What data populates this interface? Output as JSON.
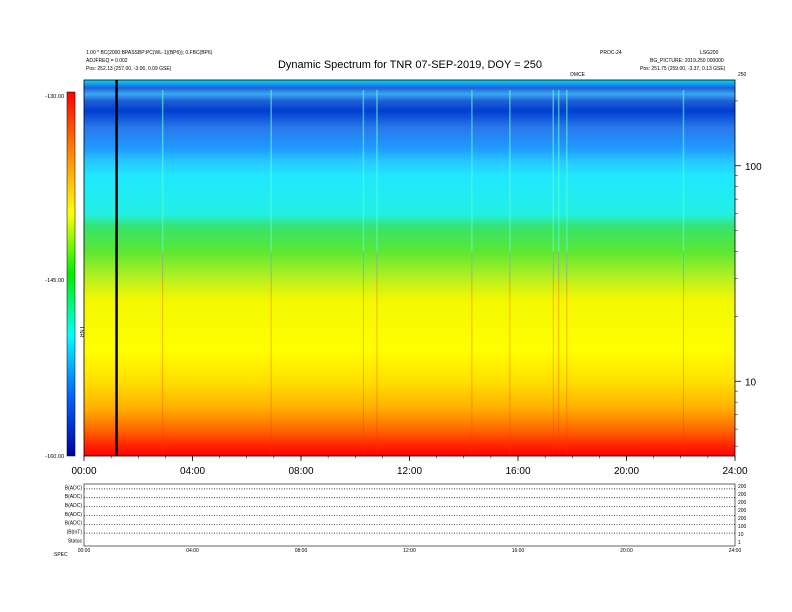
{
  "header": {
    "left_line1": "1.00 * BC(2000:BPASSBP:PC(WL-1)(BP6)); 0.FBC(BP6)",
    "left_line2": "ADJFREQ = 0.002",
    "left_line3": "Pos:  252.13 (257.00, -3.06, 0.09 GSE)",
    "right_line0": "PROC-24",
    "right_line1": "LSG200",
    "right_line2": "BG_PICTURE: 2019.250 000000",
    "right_line3": "Pos:  251.75 (259.00, -3.37, 0.13 GSE)"
  },
  "chart_data": {
    "type": "heatmap",
    "title": "Dynamic Spectrum for TNR 07-SEP-2019, DOY = 250",
    "x": {
      "unit": "hours",
      "range": [
        0,
        24
      ],
      "tick_labels": [
        "00:00",
        "04:00",
        "08:00",
        "12:00",
        "16:00",
        "20:00",
        "24:00"
      ]
    },
    "y": {
      "scale": "log",
      "unit": "kHz",
      "range": [
        4.5,
        250
      ],
      "tick_labels": [
        "10",
        "100"
      ],
      "top_label": "250"
    },
    "colorbar": {
      "label": "TNR",
      "range": [
        -160,
        -130
      ],
      "tick_labels": [
        "-130.00",
        "-145.00",
        "-160.00"
      ],
      "colors": [
        "#0000aa",
        "#0066ff",
        "#00ffff",
        "#00ee00",
        "#ffff00",
        "#ff8800",
        "#ff0000"
      ]
    },
    "annotations": [
      {
        "text": "DMCE",
        "x": 18.2
      }
    ],
    "marker_line_x_hours": 1.2,
    "band_profile": [
      {
        "f_khz": 250,
        "color": "#00ddff"
      },
      {
        "f_khz": 230,
        "color": "#1f5fd9"
      },
      {
        "f_khz": 215,
        "color": "#3aa8f0"
      },
      {
        "f_khz": 200,
        "color": "#1f5fd9"
      },
      {
        "f_khz": 180,
        "color": "#003fcf"
      },
      {
        "f_khz": 150,
        "color": "#2a78ec"
      },
      {
        "f_khz": 120,
        "color": "#1f9cff"
      },
      {
        "f_khz": 105,
        "color": "#27c7ff"
      },
      {
        "f_khz": 90,
        "color": "#1fe8ff"
      },
      {
        "f_khz": 60,
        "color": "#22f0e6"
      },
      {
        "f_khz": 52,
        "color": "#36e36b"
      },
      {
        "f_khz": 40,
        "color": "#5be832"
      },
      {
        "f_khz": 30,
        "color": "#b8f020"
      },
      {
        "f_khz": 24,
        "color": "#f2f800"
      },
      {
        "f_khz": 14,
        "color": "#ffff00"
      },
      {
        "f_khz": 10,
        "color": "#ffe000"
      },
      {
        "f_khz": 7.5,
        "color": "#ffb000"
      },
      {
        "f_khz": 6,
        "color": "#ff6a00"
      },
      {
        "f_khz": 5,
        "color": "#ff2200"
      },
      {
        "f_khz": 4.5,
        "color": "#ff0000"
      }
    ],
    "bursts_hours": [
      2.9,
      6.9,
      10.3,
      10.8,
      14.3,
      15.7,
      17.3,
      17.5,
      17.8,
      22.1
    ]
  },
  "lower_panel": {
    "row_labels": [
      "B(ADC)",
      "B(ADC)",
      "B(ADC)",
      "B(ADC)",
      "B(ADC)",
      "|B|(nT)",
      "Status",
      "SPEC"
    ],
    "right_ticks": [
      "200",
      "200",
      "200",
      "200",
      "200",
      "100",
      "10",
      "1"
    ],
    "time_labels": [
      "00:00",
      "04:00",
      "08:00",
      "12:00",
      "16:00",
      "20:00",
      "24:00"
    ]
  }
}
